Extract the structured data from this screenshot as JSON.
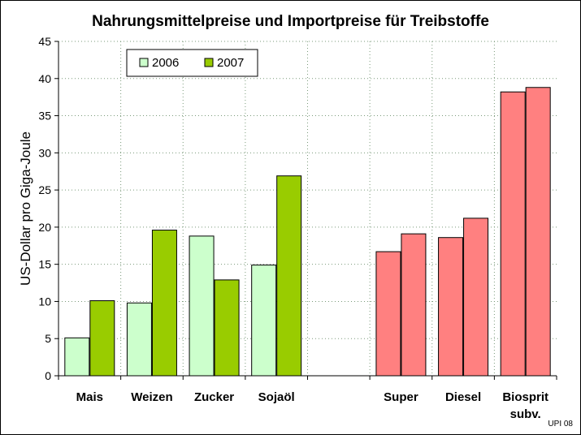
{
  "chart_data": {
    "type": "bar",
    "title": "Nahrungsmittelpreise und Importpreise für Treibstoffe",
    "xlabel": "",
    "ylabel": "US-Dollar pro Giga-Joule",
    "ylim": [
      0,
      45
    ],
    "yticks": [
      0,
      5,
      10,
      15,
      20,
      25,
      30,
      35,
      40,
      45
    ],
    "grid": true,
    "legend_position": "top-left",
    "categories": [
      "Mais",
      "Weizen",
      "Zucker",
      "Sojaöl",
      "",
      "Super",
      "Diesel",
      "Biosprit subv."
    ],
    "series": [
      {
        "name": "2006",
        "values": [
          5.1,
          9.8,
          18.8,
          14.9,
          null,
          16.7,
          18.6,
          38.2
        ]
      },
      {
        "name": "2007",
        "values": [
          10.1,
          19.6,
          12.9,
          26.9,
          null,
          19.1,
          21.2,
          38.8
        ]
      }
    ],
    "colors": {
      "food_2006": "#ccffcc",
      "food_2007": "#99cc00",
      "fuel": "#ff8080",
      "grid": "#7a9a7a"
    },
    "credit": "UPI 08"
  }
}
